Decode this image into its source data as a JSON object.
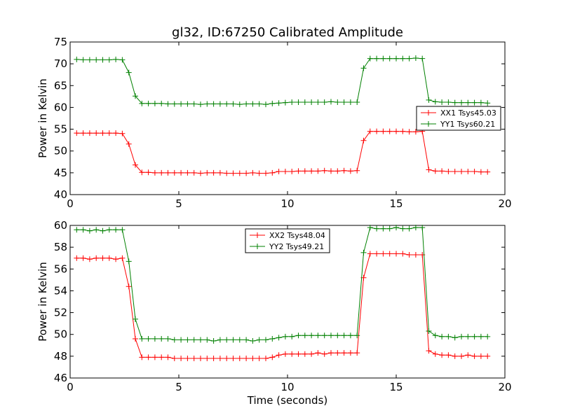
{
  "title": "gl32, ID:67250 Calibrated Amplitude",
  "chart_data": [
    {
      "type": "line",
      "ylabel": "Power in Kelvin",
      "xlabel": "",
      "xlim": [
        0,
        20
      ],
      "ylim": [
        40,
        75
      ],
      "xticks": [
        "0",
        "5",
        "10",
        "15",
        "20"
      ],
      "yticks": [
        "40",
        "45",
        "50",
        "55",
        "60",
        "65",
        "70",
        "75"
      ],
      "legend_position": "center-right",
      "x": [
        0.3,
        0.6,
        0.9,
        1.2,
        1.5,
        1.8,
        2.1,
        2.4,
        2.7,
        3.0,
        3.3,
        3.6,
        3.9,
        4.2,
        4.5,
        4.8,
        5.1,
        5.4,
        5.7,
        6.0,
        6.3,
        6.6,
        6.9,
        7.2,
        7.5,
        7.8,
        8.1,
        8.4,
        8.7,
        9.0,
        9.3,
        9.6,
        9.9,
        10.2,
        10.5,
        10.8,
        11.1,
        11.4,
        11.7,
        12.0,
        12.3,
        12.6,
        12.9,
        13.2,
        13.5,
        13.8,
        14.1,
        14.4,
        14.7,
        15.0,
        15.3,
        15.6,
        15.9,
        16.2,
        16.5,
        16.8,
        17.1,
        17.4,
        17.7,
        18.0,
        18.3,
        18.6,
        18.9,
        19.2
      ],
      "series": [
        {
          "name": "XX1 Tsys45.03",
          "color": "#ff0000",
          "values": [
            54.1,
            54.1,
            54.1,
            54.1,
            54.1,
            54.1,
            54.1,
            54.0,
            51.6,
            46.8,
            45.1,
            45.1,
            45.0,
            45.0,
            45.0,
            45.0,
            45.0,
            45.0,
            45.0,
            44.9,
            45.0,
            45.0,
            45.0,
            44.9,
            44.9,
            44.9,
            44.9,
            45.0,
            44.9,
            44.9,
            45.0,
            45.3,
            45.3,
            45.3,
            45.4,
            45.4,
            45.4,
            45.4,
            45.5,
            45.4,
            45.4,
            45.5,
            45.4,
            45.5,
            52.4,
            54.5,
            54.5,
            54.5,
            54.5,
            54.5,
            54.5,
            54.4,
            54.4,
            54.5,
            45.7,
            45.4,
            45.4,
            45.3,
            45.3,
            45.3,
            45.3,
            45.3,
            45.2,
            45.2
          ]
        },
        {
          "name": "YY1 Tsys60.21",
          "color": "#008000",
          "values": [
            71.0,
            70.9,
            70.9,
            70.9,
            70.9,
            70.9,
            71.0,
            70.9,
            68.0,
            62.6,
            60.9,
            60.9,
            60.9,
            60.9,
            60.8,
            60.8,
            60.8,
            60.8,
            60.8,
            60.7,
            60.8,
            60.8,
            60.8,
            60.8,
            60.8,
            60.7,
            60.8,
            60.8,
            60.8,
            60.7,
            60.9,
            61.0,
            61.1,
            61.2,
            61.2,
            61.2,
            61.2,
            61.2,
            61.2,
            61.3,
            61.2,
            61.2,
            61.2,
            61.2,
            69.0,
            71.2,
            71.2,
            71.2,
            71.2,
            71.2,
            71.2,
            71.2,
            71.3,
            71.2,
            61.7,
            61.3,
            61.2,
            61.2,
            61.1,
            61.1,
            61.1,
            61.1,
            61.1,
            61.0
          ]
        }
      ]
    },
    {
      "type": "line",
      "ylabel": "Power in Kelvin",
      "xlabel": "Time (seconds)",
      "xlim": [
        0,
        20
      ],
      "ylim": [
        46,
        60
      ],
      "xticks": [
        "0",
        "5",
        "10",
        "15",
        "20"
      ],
      "yticks": [
        "46",
        "48",
        "50",
        "52",
        "54",
        "56",
        "58",
        "60"
      ],
      "legend_position": "upper-center",
      "x": [
        0.3,
        0.6,
        0.9,
        1.2,
        1.5,
        1.8,
        2.1,
        2.4,
        2.7,
        3.0,
        3.3,
        3.6,
        3.9,
        4.2,
        4.5,
        4.8,
        5.1,
        5.4,
        5.7,
        6.0,
        6.3,
        6.6,
        6.9,
        7.2,
        7.5,
        7.8,
        8.1,
        8.4,
        8.7,
        9.0,
        9.3,
        9.6,
        9.9,
        10.2,
        10.5,
        10.8,
        11.1,
        11.4,
        11.7,
        12.0,
        12.3,
        12.6,
        12.9,
        13.2,
        13.5,
        13.8,
        14.1,
        14.4,
        14.7,
        15.0,
        15.3,
        15.6,
        15.9,
        16.2,
        16.5,
        16.8,
        17.1,
        17.4,
        17.7,
        18.0,
        18.3,
        18.6,
        18.9,
        19.2
      ],
      "series": [
        {
          "name": "XX2 Tsys48.04",
          "color": "#ff0000",
          "values": [
            57.0,
            57.0,
            56.9,
            57.0,
            57.0,
            57.0,
            56.9,
            57.0,
            54.4,
            49.6,
            47.9,
            47.9,
            47.9,
            47.9,
            47.9,
            47.8,
            47.8,
            47.8,
            47.8,
            47.8,
            47.8,
            47.8,
            47.8,
            47.8,
            47.8,
            47.8,
            47.8,
            47.8,
            47.8,
            47.8,
            47.9,
            48.1,
            48.2,
            48.2,
            48.2,
            48.2,
            48.2,
            48.3,
            48.2,
            48.3,
            48.3,
            48.3,
            48.3,
            48.3,
            55.2,
            57.4,
            57.4,
            57.4,
            57.4,
            57.4,
            57.4,
            57.3,
            57.3,
            57.3,
            48.5,
            48.2,
            48.1,
            48.1,
            48.0,
            48.0,
            48.1,
            48.0,
            48.0,
            48.0
          ]
        },
        {
          "name": "YY2 Tsys49.21",
          "color": "#008000",
          "values": [
            59.6,
            59.6,
            59.5,
            59.6,
            59.5,
            59.6,
            59.6,
            59.6,
            56.7,
            51.4,
            49.6,
            49.6,
            49.6,
            49.6,
            49.6,
            49.5,
            49.5,
            49.5,
            49.5,
            49.5,
            49.5,
            49.4,
            49.5,
            49.5,
            49.5,
            49.5,
            49.5,
            49.4,
            49.5,
            49.5,
            49.6,
            49.7,
            49.8,
            49.8,
            49.9,
            49.9,
            49.9,
            49.9,
            49.9,
            49.9,
            49.9,
            49.9,
            49.9,
            49.9,
            57.5,
            59.8,
            59.7,
            59.7,
            59.7,
            59.8,
            59.7,
            59.7,
            59.8,
            59.8,
            50.3,
            49.9,
            49.8,
            49.8,
            49.7,
            49.8,
            49.8,
            49.8,
            49.8,
            49.8
          ]
        }
      ]
    }
  ]
}
